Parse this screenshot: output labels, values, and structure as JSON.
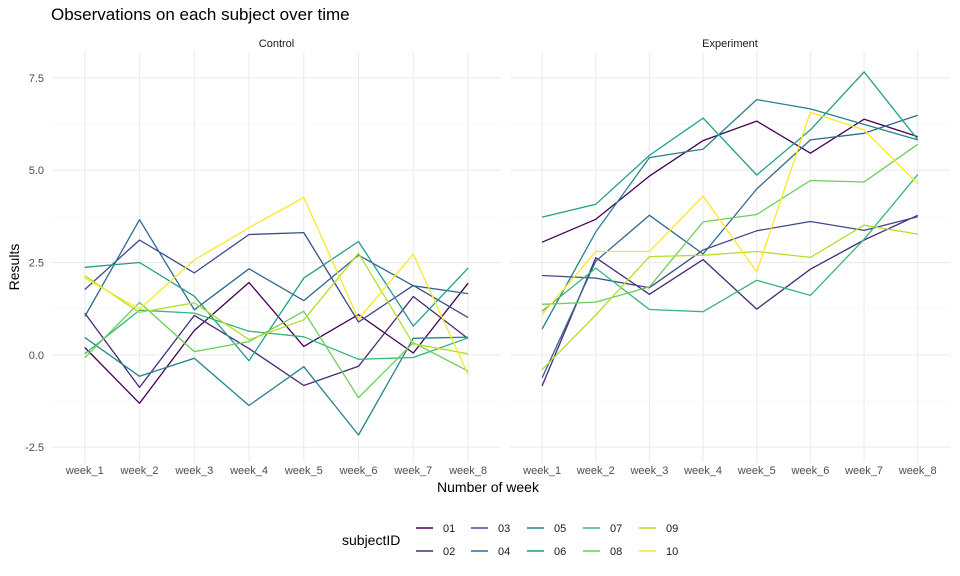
{
  "chart_data": {
    "type": "line",
    "title": "Observations on each subject over time",
    "xlabel": "Number of week",
    "ylabel": "Results",
    "x": [
      "week_1",
      "week_2",
      "week_3",
      "week_4",
      "week_5",
      "week_6",
      "week_7",
      "week_8"
    ],
    "ylim": [
      -2.9,
      8.2
    ],
    "yticks": [
      -2.5,
      0.0,
      2.5,
      5.0,
      7.5
    ],
    "ytick_labels": [
      "-2.5",
      "0.0",
      "2.5",
      "5.0",
      "7.5"
    ],
    "grid": true,
    "legend": {
      "title": "subjectID",
      "placement": "bottom",
      "entries": [
        {
          "label": "01",
          "color": "#440154"
        },
        {
          "label": "02",
          "color": "#482878"
        },
        {
          "label": "03",
          "color": "#3E4A89"
        },
        {
          "label": "04",
          "color": "#31688E"
        },
        {
          "label": "05",
          "color": "#26828E"
        },
        {
          "label": "06",
          "color": "#1F9E89"
        },
        {
          "label": "07",
          "color": "#35B779"
        },
        {
          "label": "08",
          "color": "#6DCD59"
        },
        {
          "label": "09",
          "color": "#B4DE2C"
        },
        {
          "label": "10",
          "color": "#FDE725"
        }
      ]
    },
    "panels": [
      {
        "name": "Control",
        "series": [
          {
            "subject": "01",
            "values": [
              0.2,
              -1.31,
              0.66,
              1.96,
              0.23,
              1.09,
              0.05,
              1.94
            ]
          },
          {
            "subject": "02",
            "values": [
              1.13,
              -0.88,
              1.07,
              0.17,
              -0.83,
              -0.31,
              1.58,
              0.44
            ]
          },
          {
            "subject": "03",
            "values": [
              1.77,
              3.11,
              2.22,
              3.26,
              3.31,
              0.89,
              1.88,
              1.01
            ]
          },
          {
            "subject": "04",
            "values": [
              1.04,
              3.66,
              1.22,
              2.33,
              1.47,
              2.7,
              1.87,
              1.66
            ]
          },
          {
            "subject": "05",
            "values": [
              0.47,
              -0.58,
              -0.09,
              -1.37,
              -0.32,
              -2.17,
              0.45,
              0.48
            ]
          },
          {
            "subject": "06",
            "values": [
              2.37,
              2.5,
              1.59,
              -0.16,
              2.08,
              3.07,
              0.78,
              2.35
            ]
          },
          {
            "subject": "07",
            "values": [
              0.03,
              1.21,
              1.13,
              0.64,
              0.49,
              -0.12,
              -0.07,
              0.46
            ]
          },
          {
            "subject": "08",
            "values": [
              -0.08,
              1.42,
              0.09,
              0.36,
              1.18,
              -1.16,
              0.33,
              -0.44
            ]
          },
          {
            "subject": "09",
            "values": [
              2.14,
              1.15,
              1.41,
              0.41,
              0.95,
              2.75,
              0.3,
              0.03
            ]
          },
          {
            "subject": "10",
            "values": [
              2.08,
              1.24,
              2.57,
              3.44,
              4.26,
              0.97,
              2.73,
              -0.53
            ]
          }
        ]
      },
      {
        "name": "Experiment",
        "series": [
          {
            "subject": "01",
            "values": [
              3.05,
              3.67,
              4.84,
              5.8,
              6.33,
              5.46,
              6.38,
              5.91
            ]
          },
          {
            "subject": "02",
            "values": [
              -0.84,
              2.63,
              1.64,
              2.58,
              1.24,
              2.32,
              3.11,
              3.78
            ]
          },
          {
            "subject": "03",
            "values": [
              2.15,
              2.08,
              1.82,
              2.84,
              3.36,
              3.61,
              3.37,
              3.74
            ]
          },
          {
            "subject": "04",
            "values": [
              -0.62,
              2.54,
              3.78,
              2.73,
              4.49,
              5.82,
              6.0,
              6.49
            ]
          },
          {
            "subject": "05",
            "values": [
              0.7,
              3.33,
              5.34,
              5.57,
              6.91,
              6.66,
              6.24,
              5.82
            ]
          },
          {
            "subject": "06",
            "values": [
              3.73,
              4.08,
              5.4,
              6.41,
              4.87,
              6.09,
              7.66,
              5.83
            ]
          },
          {
            "subject": "07",
            "values": [
              1.18,
              2.35,
              1.23,
              1.17,
              2.02,
              1.61,
              3.13,
              4.88
            ]
          },
          {
            "subject": "08",
            "values": [
              1.37,
              1.43,
              1.84,
              3.6,
              3.8,
              4.72,
              4.68,
              5.7
            ]
          },
          {
            "subject": "09",
            "values": [
              -0.4,
              1.08,
              2.66,
              2.7,
              2.8,
              2.64,
              3.51,
              3.27
            ]
          },
          {
            "subject": "10",
            "values": [
              1.09,
              2.8,
              2.8,
              4.3,
              2.25,
              6.57,
              6.09,
              4.64
            ]
          }
        ]
      }
    ]
  }
}
